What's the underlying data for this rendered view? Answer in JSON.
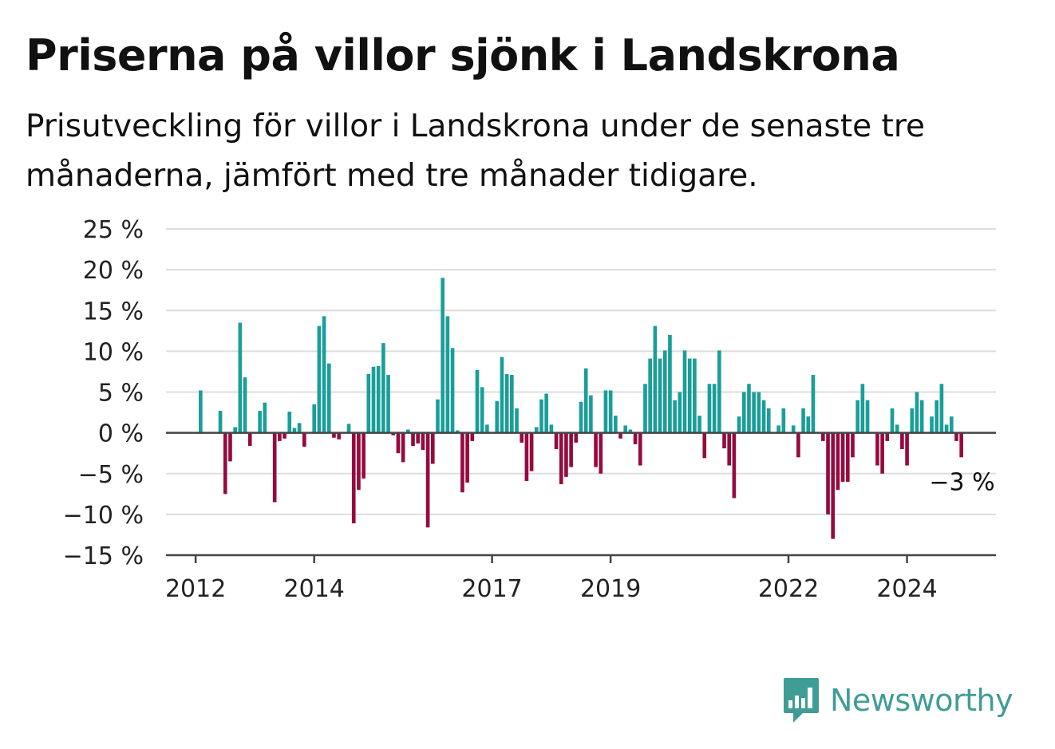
{
  "title": "Priserna på villor sjönk i Landskrona",
  "subtitle": "Prisutveckling för villor i Landskrona under de senaste tre månaderna, jämfört med tre månader tidigare.",
  "brand": {
    "name": "Newsworthy",
    "icon": "newsworthy-logo-icon",
    "color": "#3f9d96"
  },
  "colors": {
    "positive": "#1a9e99",
    "negative": "#950a3f",
    "grid": "#dddddd",
    "axis": "#444444"
  },
  "chart_data": {
    "type": "bar",
    "title": "Priserna på villor sjönk i Landskrona",
    "xlabel": "",
    "ylabel": "",
    "ylim": [
      -15,
      25
    ],
    "y_ticks": [
      25,
      20,
      15,
      10,
      5,
      0,
      -5,
      -10,
      -15
    ],
    "y_tick_labels": [
      "25 %",
      "20 %",
      "15 %",
      "10 %",
      "5 %",
      "0 %",
      "−5 %",
      "−10 %",
      "−15 %"
    ],
    "x_tick_labels": [
      "2012",
      "2014",
      "2017",
      "2019",
      "2022",
      "2024"
    ],
    "x_tick_positions": [
      2012.0,
      2014.0,
      2017.0,
      2019.0,
      2022.0,
      2024.0
    ],
    "xlim": [
      2011.5,
      2025.5
    ],
    "grid": true,
    "annotation": {
      "text": "−3 %",
      "value": -3
    },
    "start_month": "2012-02",
    "values": [
      5.2,
      0,
      0,
      0,
      2.7,
      -7.5,
      -3.5,
      0.7,
      13.5,
      6.8,
      -1.6,
      0,
      2.7,
      3.7,
      0,
      -8.5,
      -1,
      -0.7,
      2.6,
      0.6,
      1.2,
      -1.7,
      0,
      3.5,
      13.1,
      14.3,
      8.5,
      -0.6,
      -0.8,
      0,
      1.1,
      -11.1,
      -7,
      -5.6,
      7.2,
      8.1,
      8.2,
      11,
      7.1,
      -0.3,
      -2.5,
      -3.6,
      0.4,
      -1.6,
      -1.3,
      -2.1,
      -11.6,
      -3.8,
      4.1,
      19,
      14.3,
      10.4,
      0.3,
      -7.3,
      -6.1,
      -1,
      7.7,
      5.6,
      1,
      0,
      3.9,
      9.3,
      7.2,
      7.1,
      3,
      -1.2,
      -5.9,
      -4.7,
      0.7,
      4.1,
      4.8,
      1,
      -2,
      -6.3,
      -5.4,
      -4.2,
      -1.2,
      3.8,
      7.9,
      4.6,
      -4.2,
      -5,
      5.2,
      5.2,
      2.1,
      -0.7,
      0.9,
      0.4,
      -1.4,
      -4,
      6,
      9.1,
      13.1,
      9.1,
      10.1,
      12,
      4,
      5,
      10.1,
      9.1,
      9.1,
      2.1,
      -3.1,
      6,
      6,
      10.1,
      -1.9,
      -4,
      -8,
      2,
      5,
      6,
      5,
      5,
      4,
      3,
      0,
      0.9,
      3,
      0,
      0.9,
      -3,
      3,
      2,
      7.1,
      0,
      -1,
      -10,
      -13,
      -7,
      -6,
      -6,
      -3,
      4,
      6,
      4,
      0,
      -4,
      -5,
      -1,
      3,
      1,
      -2,
      -4,
      3,
      5,
      4,
      0,
      2,
      4,
      6,
      1,
      2,
      -1,
      -3
    ]
  }
}
